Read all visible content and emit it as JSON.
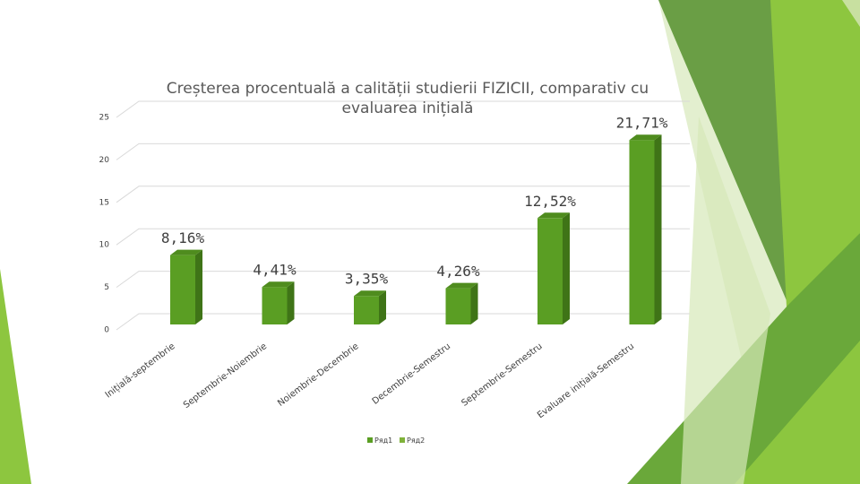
{
  "chart_data": {
    "type": "bar3d",
    "title": "Creșterea procentuală a calității studierii FIZICII, comparativ cu evaluarea inițială",
    "categories": [
      "Inițială-septembrie",
      "Septembrie-Noiembrie",
      "Noiembrie-Decembrie",
      "Decembrie-Semestru",
      "Septembrie-Semestru",
      "Evaluare inițială-Semestru"
    ],
    "series": [
      {
        "name": "Ряд1",
        "color": "#5a9e23",
        "values": [
          8.16,
          4.41,
          3.35,
          4.26,
          12.52,
          21.71
        ],
        "value_labels": [
          "8,16%",
          "4,41%",
          "3,35%",
          "4,26%",
          "12,52%",
          "21,71%"
        ]
      },
      {
        "name": "Ряд2",
        "color": "#7fb23a",
        "values": [
          null,
          null,
          null,
          null,
          null,
          null
        ]
      }
    ],
    "ylim": [
      0,
      25
    ],
    "yticks": [
      0,
      5,
      10,
      15,
      20,
      25
    ],
    "grid": true,
    "legend": "bottom"
  }
}
